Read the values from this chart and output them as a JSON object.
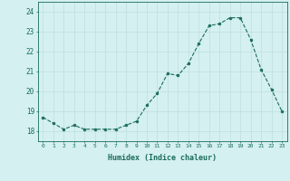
{
  "x": [
    0,
    1,
    2,
    3,
    4,
    5,
    6,
    7,
    8,
    9,
    10,
    11,
    12,
    13,
    14,
    15,
    16,
    17,
    18,
    19,
    20,
    21,
    22,
    23
  ],
  "y": [
    18.7,
    18.4,
    18.1,
    18.3,
    18.1,
    18.1,
    18.1,
    18.1,
    18.3,
    18.5,
    19.3,
    19.9,
    20.9,
    20.8,
    21.4,
    22.4,
    23.3,
    23.4,
    23.7,
    23.7,
    22.6,
    21.1,
    20.1,
    19.0
  ],
  "line_color": "#1a6b5a",
  "marker_color": "#1a6b5a",
  "bg_color": "#d4f0f0",
  "grid_color": "#c0dede",
  "text_color": "#1a6b5a",
  "xlabel": "Humidex (Indice chaleur)",
  "ylim": [
    17.5,
    24.5
  ],
  "xlim": [
    -0.5,
    23.5
  ],
  "yticks": [
    18,
    19,
    20,
    21,
    22,
    23,
    24
  ],
  "xticks": [
    0,
    1,
    2,
    3,
    4,
    5,
    6,
    7,
    8,
    9,
    10,
    11,
    12,
    13,
    14,
    15,
    16,
    17,
    18,
    19,
    20,
    21,
    22,
    23
  ]
}
